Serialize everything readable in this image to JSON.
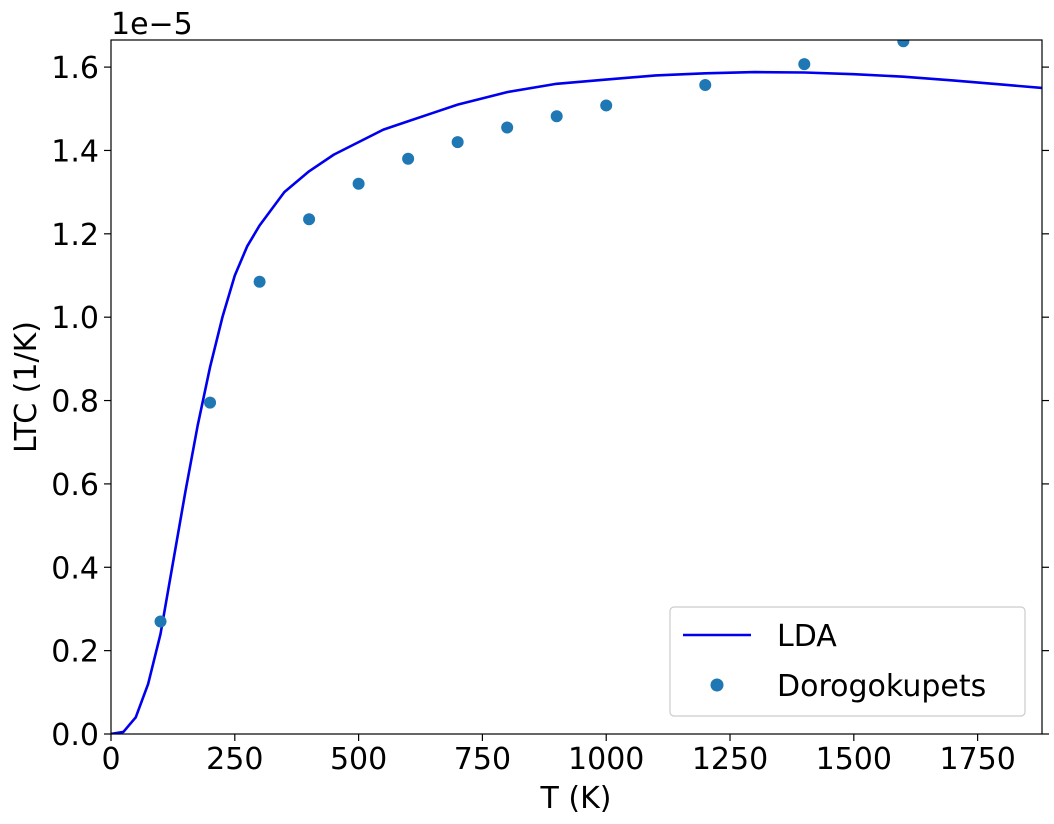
{
  "chart_data": {
    "type": "line",
    "title": "",
    "xlabel": "T (K)",
    "ylabel": "LTC (1/K)",
    "y_offset_label": "1e−5",
    "xlim": [
      0,
      1880
    ],
    "ylim": [
      0,
      1.665
    ],
    "x_ticks": [
      0,
      250,
      500,
      750,
      1000,
      1250,
      1500,
      1750
    ],
    "x_tick_labels": [
      "0",
      "250",
      "500",
      "750",
      "1000",
      "1250",
      "1500",
      "1750"
    ],
    "y_ticks": [
      0,
      0.2,
      0.4,
      0.6,
      0.8,
      1.0,
      1.2,
      1.4,
      1.6
    ],
    "y_tick_labels": [
      "0.0",
      "0.2",
      "0.4",
      "0.6",
      "0.8",
      "1.0",
      "1.2",
      "1.4",
      "1.6"
    ],
    "grid": false,
    "legend_position": "lower-right",
    "series": [
      {
        "name": "LDA",
        "kind": "line",
        "color": "#0000ee",
        "x": [
          0,
          25,
          50,
          75,
          100,
          125,
          150,
          175,
          200,
          225,
          250,
          275,
          300,
          350,
          400,
          450,
          500,
          550,
          600,
          650,
          700,
          750,
          800,
          900,
          1000,
          1100,
          1200,
          1300,
          1400,
          1500,
          1600,
          1700,
          1800,
          1880
        ],
        "y": [
          0,
          0.005,
          0.04,
          0.12,
          0.24,
          0.41,
          0.58,
          0.74,
          0.88,
          1.0,
          1.1,
          1.17,
          1.22,
          1.3,
          1.35,
          1.39,
          1.42,
          1.45,
          1.47,
          1.49,
          1.51,
          1.525,
          1.54,
          1.56,
          1.57,
          1.58,
          1.585,
          1.588,
          1.587,
          1.583,
          1.577,
          1.568,
          1.558,
          1.55
        ]
      },
      {
        "name": "Dorogokupets",
        "kind": "scatter",
        "color": "#1f77b4",
        "x": [
          100,
          200,
          300,
          400,
          500,
          600,
          700,
          800,
          900,
          1000,
          1200,
          1400,
          1600
        ],
        "y": [
          0.27,
          0.795,
          1.085,
          1.235,
          1.32,
          1.38,
          1.42,
          1.455,
          1.482,
          1.508,
          1.557,
          1.607,
          1.662
        ]
      }
    ]
  }
}
